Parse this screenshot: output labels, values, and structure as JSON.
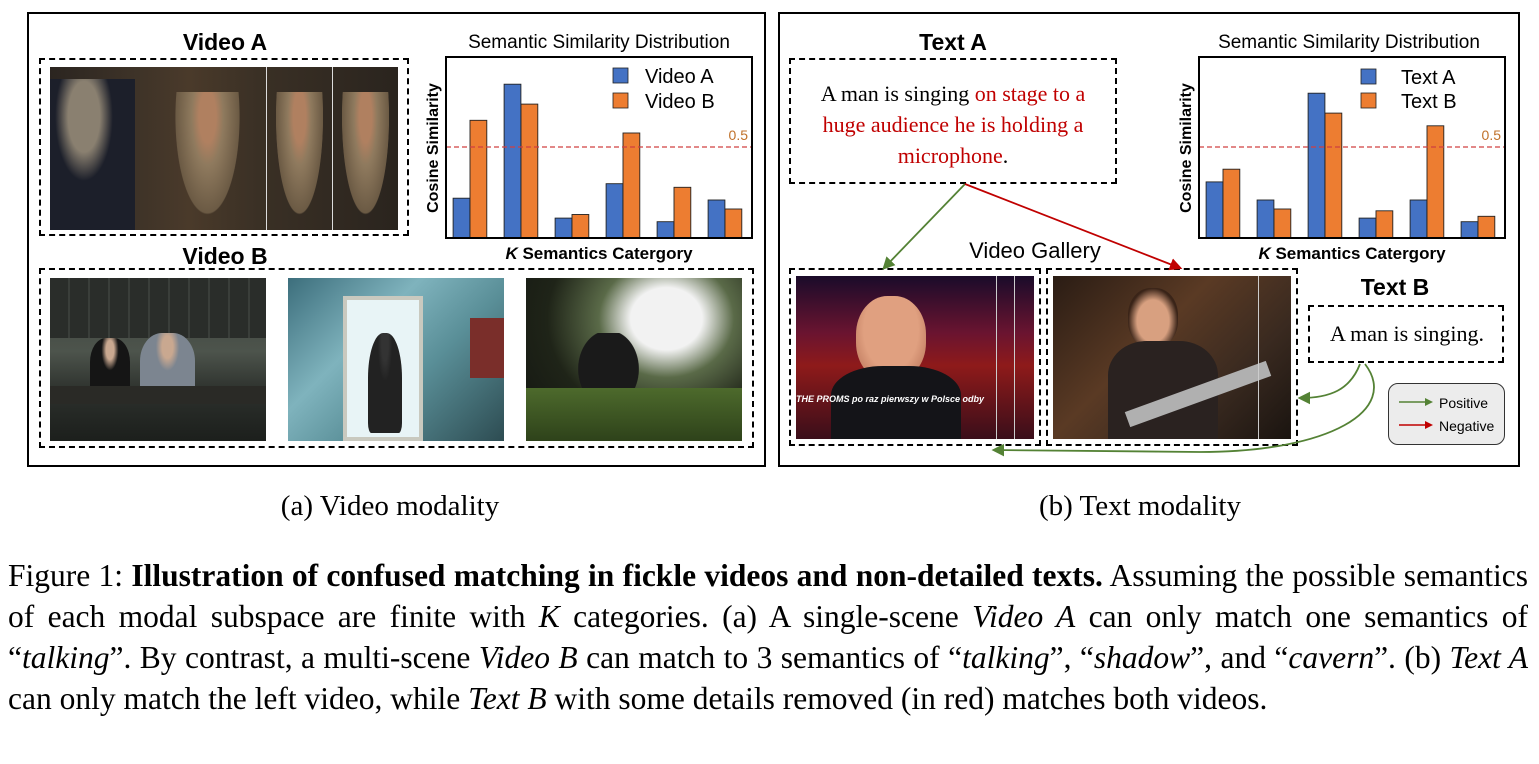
{
  "panel_a": {
    "video_a_label": "Video A",
    "video_b_label": "Video B",
    "caption": "(a) Video modality"
  },
  "panel_b": {
    "text_a_label": "Text A",
    "text_b_label": "Text B",
    "gallery_label": "Video Gallery",
    "text_a_plain": "A man is singing ",
    "text_a_red": "on stage to a huge audience he is holding a microphone",
    "text_a_end": ".",
    "text_b": "A man is singing.",
    "frame_overlay": "THE PROMS po raz pierwszy w Polsce odby",
    "legend_positive": "Positive",
    "legend_negative": "Negative",
    "caption": "(b) Text modality"
  },
  "colors": {
    "blue": "#4472c4",
    "orange": "#ed7d31",
    "threshold": "#d04040",
    "positive": "#548235",
    "negative": "#c00000"
  },
  "chart_data": [
    {
      "type": "bar",
      "title": "Semantic Similarity Distribution",
      "xlabel": "K Semantics Catergory",
      "ylabel": "Cosine Similarity",
      "categories": [
        "",
        "",
        "",
        "",
        "",
        ""
      ],
      "ylim": [
        0,
        1
      ],
      "threshold": 0.5,
      "threshold_label": "0.5",
      "series": [
        {
          "name": "Video A",
          "values": [
            0.22,
            0.85,
            0.11,
            0.3,
            0.09,
            0.21
          ]
        },
        {
          "name": "Video B",
          "values": [
            0.65,
            0.74,
            0.13,
            0.58,
            0.28,
            0.16
          ]
        }
      ],
      "legend": "top-right"
    },
    {
      "type": "bar",
      "title": "Semantic Similarity Distribution",
      "xlabel": "K Semantics Catergory",
      "ylabel": "Cosine Similarity",
      "categories": [
        "",
        "",
        "",
        "",
        "",
        ""
      ],
      "ylim": [
        0,
        1
      ],
      "threshold": 0.5,
      "threshold_label": "0.5",
      "series": [
        {
          "name": "Text A",
          "values": [
            0.31,
            0.21,
            0.8,
            0.11,
            0.21,
            0.09
          ]
        },
        {
          "name": "Text B",
          "values": [
            0.38,
            0.16,
            0.69,
            0.15,
            0.62,
            0.12
          ]
        }
      ],
      "legend": "top-right"
    }
  ],
  "caption": {
    "figure_label": "Figure 1:",
    "bold": "Illustration of confused matching in fickle videos and non-detailed texts.",
    "s1": " Assuming the possible semantics of each modal subspace are finite with ",
    "k": "K",
    "s2": " categories. (a) A single-scene ",
    "video_a": "Video A",
    "s3": " can only match one semantics of “",
    "talking1": "talking",
    "s4": "”. By contrast, a multi-scene ",
    "video_b": "Video B",
    "s5": " can match to 3 semantics of “",
    "talking2": "talking",
    "s6": "”, “",
    "shadow": "shadow",
    "s7": "”, and “",
    "cavern": "cavern",
    "s8": "”. (b) ",
    "text_a": "Text A",
    "s9": " can only match the left video, while ",
    "text_b": "Text B",
    "s10": " with some details removed (in red) matches both videos."
  }
}
